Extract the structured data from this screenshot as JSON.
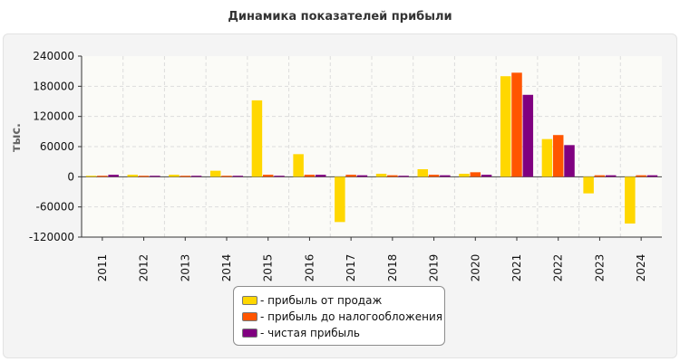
{
  "title": "Динамика показателей прибыли",
  "colors": {
    "page_background": "#ffffff",
    "panel_background": "#f4f4f4",
    "plot_background": "#fbfbf7",
    "grid": "#dddddd"
  },
  "chart_data": {
    "type": "bar",
    "title": "Динамика показателей прибыли",
    "ylabel": "тыс.",
    "xlabel": "",
    "ylim": [
      -120000,
      240000
    ],
    "yticks": [
      240000,
      180000,
      120000,
      60000,
      0,
      -60000,
      -120000
    ],
    "ytick_labels": [
      "240000",
      "180000",
      "120000",
      "60000",
      "0",
      "-60000",
      "-120000"
    ],
    "grid": true,
    "legend_position": "bottom-center",
    "categories": [
      "2011",
      "2012",
      "2013",
      "2014",
      "2015",
      "2016",
      "2017",
      "2018",
      "2019",
      "2020",
      "2021",
      "2022",
      "2023",
      "2024"
    ],
    "series": [
      {
        "name": "прибыль от продаж",
        "color": "#ffd700",
        "values": [
          2000,
          4000,
          4000,
          12000,
          152000,
          45000,
          -90000,
          6000,
          15000,
          6000,
          200000,
          75000,
          -33000,
          -93000
        ]
      },
      {
        "name": "прибыль до налогообложения",
        "color": "#ff5500",
        "values": [
          2000,
          2000,
          2000,
          2000,
          4000,
          4000,
          4000,
          3000,
          4000,
          9000,
          207000,
          83000,
          3000,
          3000
        ]
      },
      {
        "name": "чистая прибыль",
        "color": "#800080",
        "values": [
          4000,
          2000,
          2000,
          2000,
          2000,
          4000,
          3000,
          2000,
          3000,
          4000,
          163000,
          63000,
          3000,
          3000
        ]
      }
    ]
  }
}
